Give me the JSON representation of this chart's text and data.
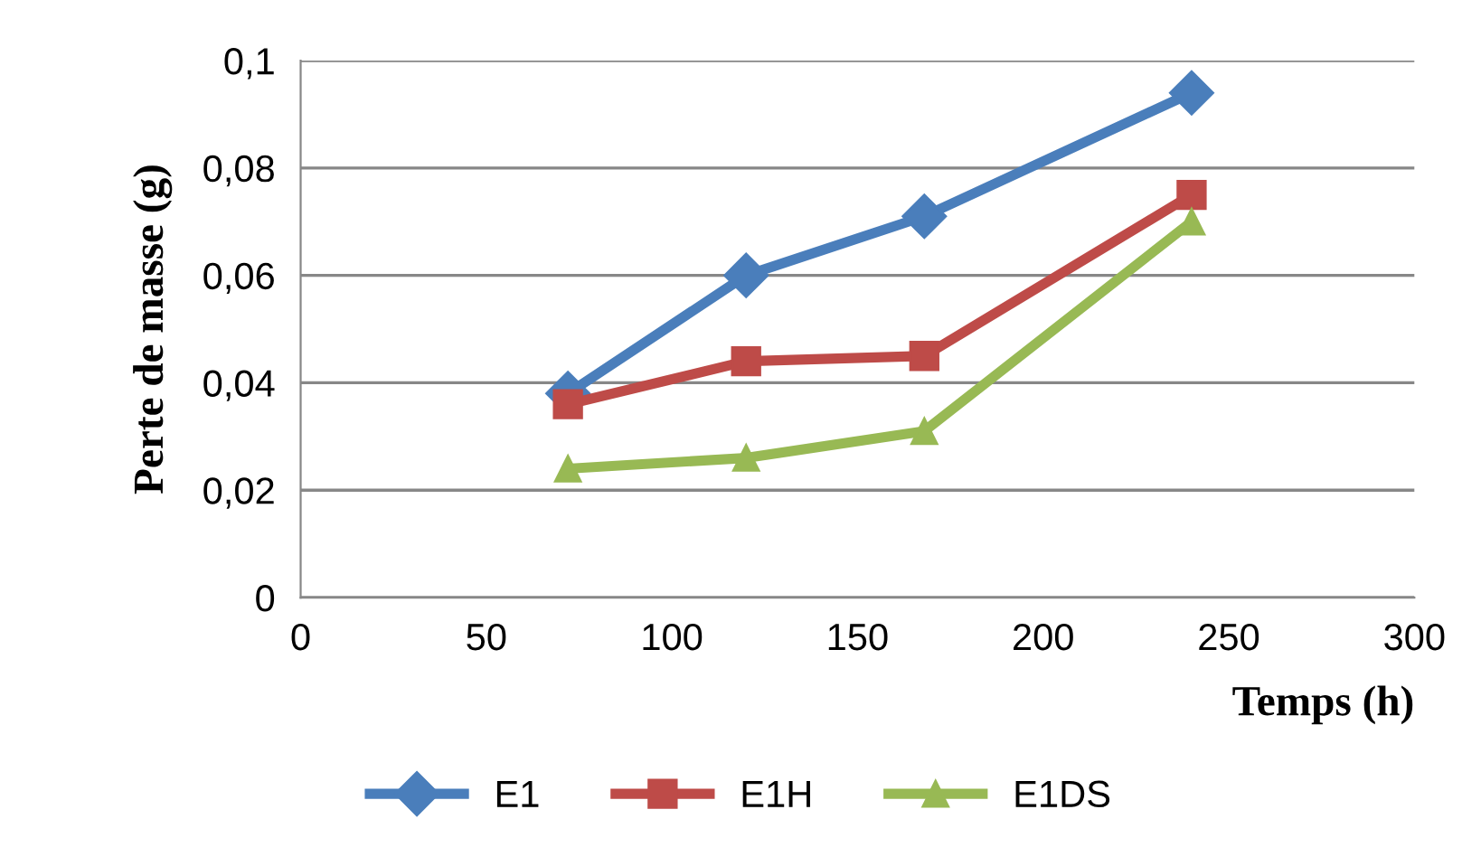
{
  "chart_data": {
    "type": "line",
    "xlabel": "Temps (h)",
    "ylabel": "Perte de masse (g)",
    "x": [
      72,
      120,
      168,
      240
    ],
    "series": [
      {
        "name": "E1",
        "color": "#4a7ebb",
        "marker": "diamond",
        "values": [
          0.038,
          0.06,
          0.071,
          0.094
        ]
      },
      {
        "name": "E1H",
        "color": "#be4b48",
        "marker": "square",
        "values": [
          0.036,
          0.044,
          0.045,
          0.075
        ]
      },
      {
        "name": "E1DS",
        "color": "#98b954",
        "marker": "triangle",
        "values": [
          0.024,
          0.026,
          0.031,
          0.07
        ]
      }
    ],
    "xlim": [
      0,
      300
    ],
    "xticks": [
      0,
      50,
      100,
      150,
      200,
      250,
      300
    ],
    "ylim": [
      0,
      0.1
    ],
    "yticks": [
      {
        "value": 0,
        "label": "0"
      },
      {
        "value": 0.02,
        "label": "0,02"
      },
      {
        "value": 0.04,
        "label": "0,04"
      },
      {
        "value": 0.06,
        "label": "0,06"
      },
      {
        "value": 0.08,
        "label": "0,08"
      },
      {
        "value": 0.1,
        "label": "0,1"
      }
    ],
    "grid": "y",
    "legend": "bottom",
    "line_style": "solid"
  }
}
